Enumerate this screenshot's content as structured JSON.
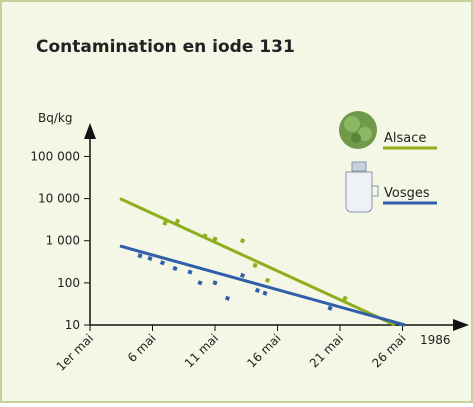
{
  "chart_data": {
    "type": "scatter",
    "title": "Contamination en iode 131",
    "y_label": "Bq/kg",
    "x_label": "1986",
    "log_y": true,
    "xlim": [
      1,
      31
    ],
    "ylim": [
      10,
      500000
    ],
    "xticks": [
      {
        "value": 1,
        "label": "1er mai"
      },
      {
        "value": 6,
        "label": "6 mai"
      },
      {
        "value": 11,
        "label": "11 mai"
      },
      {
        "value": 16,
        "label": "16 mai"
      },
      {
        "value": 21,
        "label": "21 mai"
      },
      {
        "value": 26,
        "label": "26 mai"
      }
    ],
    "yticks": [
      10,
      100,
      {
        "value": 1000,
        "label": "1 000"
      },
      {
        "value": 10000,
        "label": "10 000"
      },
      {
        "value": 100000,
        "label": "100 000"
      }
    ],
    "series": [
      {
        "name": "Alsace",
        "color": "#8fae1b",
        "x": [
          7.0,
          8.0,
          10.2,
          11.0,
          13.2,
          14.2,
          15.2,
          21.4
        ],
        "values": [
          2600,
          2900,
          1300,
          1100,
          1000,
          260,
          115,
          43
        ],
        "fit": {
          "x": [
            3.4,
            25.4
          ],
          "values": [
            10000,
            10
          ]
        }
      },
      {
        "name": "Vosges",
        "color": "#2f5fa8",
        "x": [
          5.0,
          5.8,
          6.8,
          7.8,
          9.0,
          9.8,
          11.0,
          12.0,
          13.2,
          14.4,
          15.0,
          20.2
        ],
        "values": [
          440,
          380,
          300,
          220,
          180,
          100,
          100,
          43,
          150,
          66,
          57,
          25
        ],
        "fit": {
          "x": [
            3.4,
            26.2
          ],
          "values": [
            750,
            10
          ]
        }
      }
    ]
  }
}
